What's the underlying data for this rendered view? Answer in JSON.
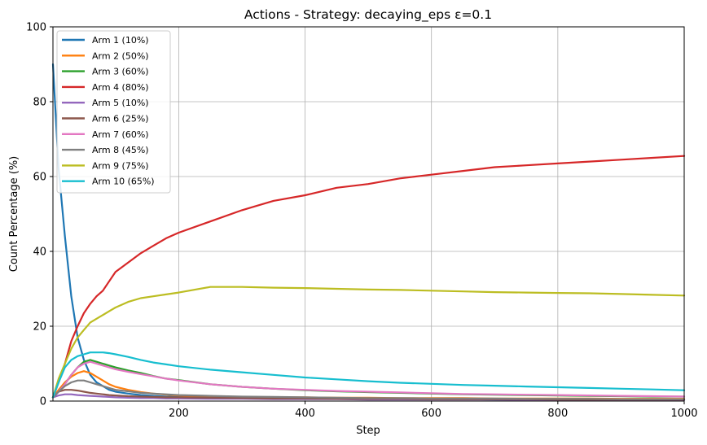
{
  "chart_data": {
    "type": "line",
    "title": "Actions - Strategy: decaying_eps ε=0.1",
    "xlabel": "Step",
    "ylabel": "Count Percentage (%)",
    "xlim": [
      1,
      1000
    ],
    "ylim": [
      0,
      100
    ],
    "xticks": [
      200,
      400,
      600,
      800,
      1000
    ],
    "yticks": [
      0,
      20,
      40,
      60,
      80,
      100
    ],
    "grid": true,
    "legend_position": "top-left",
    "x": [
      1,
      10,
      20,
      30,
      40,
      50,
      60,
      70,
      80,
      90,
      100,
      120,
      140,
      160,
      180,
      200,
      250,
      300,
      350,
      400,
      450,
      500,
      550,
      600,
      650,
      700,
      750,
      800,
      850,
      900,
      950,
      1000
    ],
    "series": [
      {
        "name": "Arm 1 (10%)",
        "color": "#1f77b4",
        "values": [
          90,
          62,
          44,
          28,
          17,
          11,
          7,
          5,
          4,
          3,
          2.5,
          2,
          1.6,
          1.4,
          1.2,
          1.1,
          1.0,
          0.9,
          0.8,
          0.7,
          0.6,
          0.6,
          0.5,
          0.5,
          0.5,
          0.4,
          0.4,
          0.4,
          0.4,
          0.3,
          0.3,
          0.3
        ]
      },
      {
        "name": "Arm 2 (50%)",
        "color": "#ff7f0e",
        "values": [
          1,
          3,
          5,
          6.5,
          7.5,
          8,
          7.5,
          6.5,
          5.5,
          4.5,
          3.8,
          3,
          2.4,
          2,
          1.7,
          1.5,
          1.2,
          1.1,
          1.0,
          1.0,
          0.9,
          0.9,
          0.8,
          0.8,
          0.8,
          0.7,
          0.7,
          0.7,
          0.7,
          0.6,
          0.6,
          0.6
        ]
      },
      {
        "name": "Arm 3 (60%)",
        "color": "#2ca02c",
        "values": [
          1,
          2.5,
          4.5,
          7,
          9,
          10.5,
          11,
          10.5,
          10,
          9.5,
          9,
          8.2,
          7.5,
          6.7,
          6,
          5.6,
          4.5,
          3.8,
          3.3,
          2.9,
          2.6,
          2.4,
          2.2,
          2.0,
          1.8,
          1.7,
          1.6,
          1.5,
          1.4,
          1.3,
          1.2,
          1.2
        ]
      },
      {
        "name": "Arm 4 (80%)",
        "color": "#d62728",
        "values": [
          1,
          5,
          10,
          16,
          20,
          23.5,
          26,
          28,
          29.5,
          32,
          34.5,
          37,
          39.5,
          41.5,
          43.5,
          45,
          48,
          51,
          53.5,
          55,
          57,
          58,
          59.5,
          60.5,
          61.5,
          62.5,
          63,
          63.5,
          64,
          64.5,
          65,
          65.5
        ]
      },
      {
        "name": "Arm 5 (10%)",
        "color": "#9467bd",
        "values": [
          1,
          1.5,
          1.8,
          1.8,
          1.6,
          1.5,
          1.4,
          1.3,
          1.2,
          1.1,
          1.0,
          0.9,
          0.8,
          0.8,
          0.7,
          0.7,
          0.6,
          0.6,
          0.5,
          0.5,
          0.5,
          0.4,
          0.4,
          0.4,
          0.4,
          0.4,
          0.3,
          0.3,
          0.3,
          0.3,
          0.3,
          0.3
        ]
      },
      {
        "name": "Arm 6 (25%)",
        "color": "#8c564b",
        "values": [
          1,
          2.5,
          3,
          3,
          2.8,
          2.5,
          2.2,
          2,
          1.8,
          1.6,
          1.5,
          1.3,
          1.2,
          1.1,
          1.0,
          1.0,
          0.9,
          0.8,
          0.7,
          0.7,
          0.6,
          0.6,
          0.6,
          0.5,
          0.5,
          0.5,
          0.5,
          0.4,
          0.4,
          0.4,
          0.4,
          0.4
        ]
      },
      {
        "name": "Arm 7 (60%)",
        "color": "#e377c2",
        "values": [
          1,
          2.5,
          4.5,
          7,
          9,
          10,
          10.5,
          10,
          9.5,
          9,
          8.5,
          7.8,
          7.2,
          6.6,
          6,
          5.5,
          4.5,
          3.8,
          3.3,
          3.0,
          2.7,
          2.5,
          2.3,
          2.1,
          1.9,
          1.8,
          1.7,
          1.6,
          1.5,
          1.4,
          1.3,
          1.2
        ]
      },
      {
        "name": "Arm 8 (45%)",
        "color": "#7f7f7f",
        "values": [
          1,
          2.5,
          4,
          5,
          5.5,
          5.5,
          5,
          4.5,
          4,
          3.5,
          3,
          2.6,
          2.2,
          2,
          1.8,
          1.6,
          1.4,
          1.2,
          1.1,
          1.0,
          0.9,
          0.8,
          0.8,
          0.7,
          0.7,
          0.7,
          0.6,
          0.6,
          0.6,
          0.5,
          0.5,
          0.5
        ]
      },
      {
        "name": "Arm 9 (75%)",
        "color": "#bcbd22",
        "values": [
          1,
          6,
          10,
          14,
          17,
          19,
          21,
          22,
          23,
          24,
          25,
          26.5,
          27.5,
          28,
          28.5,
          29,
          30.5,
          30.5,
          30.3,
          30.2,
          30,
          29.8,
          29.7,
          29.5,
          29.3,
          29.1,
          29,
          28.9,
          28.8,
          28.6,
          28.4,
          28.2
        ]
      },
      {
        "name": "Arm 10 (65%)",
        "color": "#17becf",
        "values": [
          1,
          5,
          9,
          11,
          12,
          12.5,
          13,
          13,
          13,
          12.8,
          12.5,
          11.8,
          11,
          10.3,
          9.8,
          9.3,
          8.4,
          7.7,
          7,
          6.3,
          5.8,
          5.3,
          4.9,
          4.6,
          4.3,
          4.1,
          3.9,
          3.7,
          3.5,
          3.3,
          3.1,
          2.9
        ]
      }
    ]
  }
}
